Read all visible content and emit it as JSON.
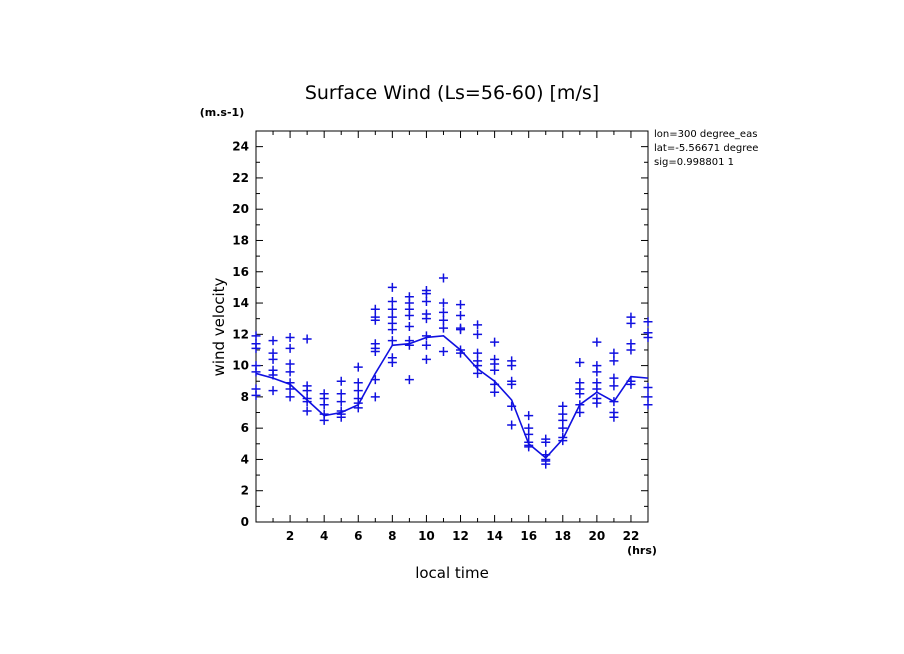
{
  "chart_data": {
    "type": "scatter",
    "title": "Surface Wind  (Ls=56-60) [m/s]",
    "ylabel": "wind velocity",
    "yunit": "(m.s-1)",
    "xlabel": "local time",
    "xunit": "(hrs)",
    "xlim": [
      0,
      23
    ],
    "ylim": [
      0,
      25
    ],
    "xticks": [
      2,
      4,
      6,
      8,
      10,
      12,
      14,
      16,
      18,
      20,
      22
    ],
    "yticks": [
      0,
      2,
      4,
      6,
      8,
      10,
      12,
      14,
      16,
      18,
      20,
      22,
      24
    ],
    "info_lines": [
      "lon=300 degree_eas",
      "lat=-5.56671 degree",
      "sig=0.998801 1"
    ],
    "color": "#1010e0",
    "mean_line": {
      "name": "mean",
      "x": [
        0,
        1,
        2,
        3,
        4,
        5,
        6,
        7,
        8,
        9,
        10,
        11,
        12,
        13,
        14,
        15,
        16,
        17,
        18,
        19,
        20,
        21,
        22,
        23
      ],
      "y": [
        9.5,
        9.2,
        8.8,
        7.8,
        6.8,
        7.0,
        7.5,
        9.5,
        11.3,
        11.4,
        11.8,
        11.9,
        11.0,
        9.8,
        9.0,
        7.8,
        5.0,
        4.1,
        5.3,
        7.5,
        8.3,
        7.7,
        9.3,
        9.2
      ]
    },
    "series": [
      {
        "name": "samples",
        "points": [
          [
            0,
            11.9
          ],
          [
            0,
            11.4
          ],
          [
            0,
            11.1
          ],
          [
            0,
            10.0
          ],
          [
            0,
            9.6
          ],
          [
            0,
            8.5
          ],
          [
            0,
            8.1
          ],
          [
            1,
            11.6
          ],
          [
            1,
            10.8
          ],
          [
            1,
            10.4
          ],
          [
            1,
            9.7
          ],
          [
            1,
            9.4
          ],
          [
            1,
            8.4
          ],
          [
            2,
            11.8
          ],
          [
            2,
            11.1
          ],
          [
            2,
            10.1
          ],
          [
            2,
            9.6
          ],
          [
            2,
            8.9
          ],
          [
            2,
            8.5
          ],
          [
            2,
            8.0
          ],
          [
            3,
            11.7
          ],
          [
            3,
            8.7
          ],
          [
            3,
            8.4
          ],
          [
            3,
            7.9
          ],
          [
            3,
            7.7
          ],
          [
            3,
            7.1
          ],
          [
            4,
            8.2
          ],
          [
            4,
            7.9
          ],
          [
            4,
            7.5
          ],
          [
            4,
            6.9
          ],
          [
            4,
            6.5
          ],
          [
            5,
            9.0
          ],
          [
            5,
            8.2
          ],
          [
            5,
            7.7
          ],
          [
            5,
            7.1
          ],
          [
            5,
            6.9
          ],
          [
            5,
            6.7
          ],
          [
            6,
            9.9
          ],
          [
            6,
            8.9
          ],
          [
            6,
            8.4
          ],
          [
            6,
            7.9
          ],
          [
            6,
            7.6
          ],
          [
            6,
            7.3
          ],
          [
            7,
            13.6
          ],
          [
            7,
            13.1
          ],
          [
            7,
            12.9
          ],
          [
            7,
            11.4
          ],
          [
            7,
            11.1
          ],
          [
            7,
            10.9
          ],
          [
            7,
            9.1
          ],
          [
            7,
            8.0
          ],
          [
            8,
            15.0
          ],
          [
            8,
            14.1
          ],
          [
            8,
            13.6
          ],
          [
            8,
            13.1
          ],
          [
            8,
            12.7
          ],
          [
            8,
            12.3
          ],
          [
            8,
            11.6
          ],
          [
            8,
            10.5
          ],
          [
            8,
            10.2
          ],
          [
            9,
            14.4
          ],
          [
            9,
            14.0
          ],
          [
            9,
            13.6
          ],
          [
            9,
            13.2
          ],
          [
            9,
            12.5
          ],
          [
            9,
            11.6
          ],
          [
            9,
            11.3
          ],
          [
            9,
            9.1
          ],
          [
            10,
            14.8
          ],
          [
            10,
            14.6
          ],
          [
            10,
            14.1
          ],
          [
            10,
            13.3
          ],
          [
            10,
            13.0
          ],
          [
            10,
            11.9
          ],
          [
            10,
            11.3
          ],
          [
            10,
            10.4
          ],
          [
            11,
            15.6
          ],
          [
            11,
            14.0
          ],
          [
            11,
            13.4
          ],
          [
            11,
            12.9
          ],
          [
            11,
            12.4
          ],
          [
            11,
            10.9
          ],
          [
            12,
            13.9
          ],
          [
            12,
            13.2
          ],
          [
            12,
            12.4
          ],
          [
            12,
            12.3
          ],
          [
            12,
            11.0
          ],
          [
            12,
            10.8
          ],
          [
            13,
            12.6
          ],
          [
            13,
            12.0
          ],
          [
            13,
            10.8
          ],
          [
            13,
            10.3
          ],
          [
            13,
            10.0
          ],
          [
            13,
            9.5
          ],
          [
            14,
            11.5
          ],
          [
            14,
            10.4
          ],
          [
            14,
            10.1
          ],
          [
            14,
            9.7
          ],
          [
            14,
            8.8
          ],
          [
            14,
            8.3
          ],
          [
            15,
            10.3
          ],
          [
            15,
            10.0
          ],
          [
            15,
            9.0
          ],
          [
            15,
            8.8
          ],
          [
            15,
            7.4
          ],
          [
            15,
            6.2
          ],
          [
            16,
            6.8
          ],
          [
            16,
            6.0
          ],
          [
            16,
            5.6
          ],
          [
            16,
            5.1
          ],
          [
            16,
            4.9
          ],
          [
            16,
            4.8
          ],
          [
            17,
            5.3
          ],
          [
            17,
            5.1
          ],
          [
            17,
            4.3
          ],
          [
            17,
            4.0
          ],
          [
            17,
            3.9
          ],
          [
            17,
            3.7
          ],
          [
            18,
            7.4
          ],
          [
            18,
            6.9
          ],
          [
            18,
            6.5
          ],
          [
            18,
            6.0
          ],
          [
            18,
            5.4
          ],
          [
            18,
            5.2
          ],
          [
            19,
            10.2
          ],
          [
            19,
            8.9
          ],
          [
            19,
            8.5
          ],
          [
            19,
            8.2
          ],
          [
            19,
            7.5
          ],
          [
            19,
            7.0
          ],
          [
            20,
            11.5
          ],
          [
            20,
            10.0
          ],
          [
            20,
            9.6
          ],
          [
            20,
            8.9
          ],
          [
            20,
            8.5
          ],
          [
            20,
            7.9
          ],
          [
            20,
            7.6
          ],
          [
            21,
            10.8
          ],
          [
            21,
            10.3
          ],
          [
            21,
            9.2
          ],
          [
            21,
            8.7
          ],
          [
            21,
            7.7
          ],
          [
            21,
            7.0
          ],
          [
            21,
            6.7
          ],
          [
            22,
            13.1
          ],
          [
            22,
            12.7
          ],
          [
            22,
            11.4
          ],
          [
            22,
            11.0
          ],
          [
            22,
            9.0
          ],
          [
            22,
            8.8
          ],
          [
            23,
            12.8
          ],
          [
            23,
            12.1
          ],
          [
            23,
            11.8
          ],
          [
            23,
            8.6
          ],
          [
            23,
            8.0
          ],
          [
            23,
            7.5
          ]
        ]
      }
    ]
  }
}
